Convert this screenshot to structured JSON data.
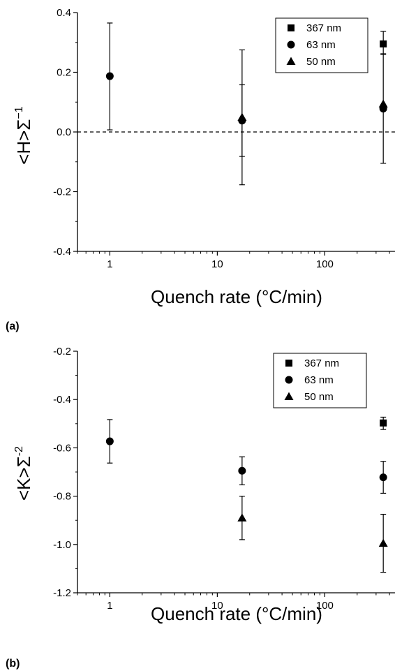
{
  "chart_data": [
    {
      "type": "scatter",
      "panel_label": "(a)",
      "xlabel": "Quench rate (°C/min)",
      "ylabel_main": "<H>Σ",
      "ylabel_sup": "−1",
      "xscale": "log",
      "xlim": [
        0.5,
        450
      ],
      "ylim": [
        -0.4,
        0.4
      ],
      "x_ticks": [
        1,
        10,
        100
      ],
      "x_tick_labels": [
        "1",
        "10",
        "100"
      ],
      "y_ticks": [
        -0.4,
        -0.2,
        0.0,
        0.2,
        0.4
      ],
      "y_tick_labels": [
        "-0.4",
        "-0.2",
        "0.0",
        "0.2",
        "0.4"
      ],
      "reference_line": {
        "y": 0,
        "style": "dashed"
      },
      "legend_position": "top-right",
      "series": [
        {
          "name": "367 nm",
          "marker": "square",
          "points": [
            {
              "x": 350,
              "y": 0.295,
              "err_low": 0.035,
              "err_high": 0.042
            }
          ]
        },
        {
          "name": "63 nm",
          "marker": "circle",
          "points": [
            {
              "x": 1,
              "y": 0.187,
              "err_low": 0.18,
              "err_high": 0.178
            },
            {
              "x": 17,
              "y": 0.038,
              "err_low": 0.12,
              "err_high": 0.12
            },
            {
              "x": 350,
              "y": 0.078,
              "err_low": 0.183,
              "err_high": 0.184
            }
          ]
        },
        {
          "name": "50 nm",
          "marker": "triangle",
          "points": [
            {
              "x": 17,
              "y": 0.049,
              "err_low": 0.226,
              "err_high": 0.226
            },
            {
              "x": 350,
              "y": 0.094,
              "err_low": 0.0,
              "err_high": 0.0
            }
          ]
        }
      ]
    },
    {
      "type": "scatter",
      "panel_label": "(b)",
      "xlabel": "Quench rate (°C/min)",
      "ylabel_main": "<K>Σ",
      "ylabel_sup": "-2",
      "xscale": "log",
      "xlim": [
        0.5,
        450
      ],
      "ylim": [
        -1.2,
        -0.2
      ],
      "x_ticks": [
        1,
        10,
        100
      ],
      "x_tick_labels": [
        "1",
        "10",
        "100"
      ],
      "y_ticks": [
        -1.2,
        -1.0,
        -0.8,
        -0.6,
        -0.4,
        -0.2
      ],
      "y_tick_labels": [
        "-1.2",
        "-1.0",
        "-0.8",
        "-0.6",
        "-0.4",
        "-0.2"
      ],
      "legend_position": "top-right",
      "series": [
        {
          "name": "367 nm",
          "marker": "square",
          "points": [
            {
              "x": 350,
              "y": -0.497,
              "err_low": 0.027,
              "err_high": 0.024
            }
          ]
        },
        {
          "name": "63 nm",
          "marker": "circle",
          "points": [
            {
              "x": 1,
              "y": -0.573,
              "err_low": 0.09,
              "err_high": 0.09
            },
            {
              "x": 17,
              "y": -0.695,
              "err_low": 0.058,
              "err_high": 0.058
            },
            {
              "x": 350,
              "y": -0.722,
              "err_low": 0.066,
              "err_high": 0.066
            }
          ]
        },
        {
          "name": "50 nm",
          "marker": "triangle",
          "points": [
            {
              "x": 17,
              "y": -0.89,
              "err_low": 0.09,
              "err_high": 0.09
            },
            {
              "x": 350,
              "y": -0.995,
              "err_low": 0.12,
              "err_high": 0.12
            }
          ]
        }
      ]
    }
  ]
}
